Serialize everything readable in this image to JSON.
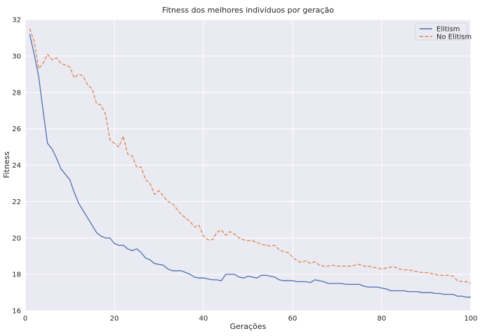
{
  "chart_data": {
    "type": "line",
    "title": "Fitness dos melhores indivíduos por geração",
    "xlabel": "Gerações",
    "ylabel": "Fitness",
    "xlim": [
      0,
      100
    ],
    "ylim": [
      16,
      32
    ],
    "xticks": [
      0,
      20,
      40,
      60,
      80,
      100
    ],
    "yticks": [
      16,
      18,
      20,
      22,
      24,
      26,
      28,
      30,
      32
    ],
    "grid": true,
    "legend_position": "top-right",
    "series": [
      {
        "name": "Elitism",
        "color": "#4c72b0",
        "dash": "solid",
        "x": [
          1,
          2,
          3,
          4,
          5,
          6,
          7,
          8,
          9,
          10,
          11,
          12,
          13,
          14,
          15,
          16,
          17,
          18,
          19,
          20,
          21,
          22,
          23,
          24,
          25,
          26,
          27,
          28,
          29,
          30,
          31,
          32,
          33,
          34,
          35,
          36,
          37,
          38,
          39,
          40,
          41,
          42,
          43,
          44,
          45,
          46,
          47,
          48,
          49,
          50,
          51,
          52,
          53,
          54,
          55,
          56,
          57,
          58,
          59,
          60,
          61,
          62,
          63,
          64,
          65,
          66,
          67,
          68,
          69,
          70,
          71,
          72,
          73,
          74,
          75,
          76,
          77,
          78,
          79,
          80,
          81,
          82,
          83,
          84,
          85,
          86,
          87,
          88,
          89,
          90,
          91,
          92,
          93,
          94,
          95,
          96,
          97,
          98,
          99,
          100
        ],
        "values": [
          31.2,
          30.1,
          28.9,
          27.0,
          25.2,
          24.9,
          24.4,
          23.8,
          23.5,
          23.2,
          22.5,
          21.9,
          21.5,
          21.1,
          20.7,
          20.3,
          20.1,
          20.0,
          20.0,
          19.7,
          19.6,
          19.6,
          19.4,
          19.3,
          19.4,
          19.2,
          18.9,
          18.8,
          18.6,
          18.55,
          18.5,
          18.3,
          18.2,
          18.2,
          18.2,
          18.1,
          18.0,
          17.85,
          17.8,
          17.8,
          17.75,
          17.7,
          17.7,
          17.65,
          18.0,
          18.0,
          18.0,
          17.85,
          17.8,
          17.9,
          17.85,
          17.8,
          17.95,
          17.95,
          17.9,
          17.85,
          17.7,
          17.65,
          17.65,
          17.65,
          17.6,
          17.6,
          17.6,
          17.55,
          17.7,
          17.65,
          17.6,
          17.5,
          17.5,
          17.5,
          17.5,
          17.45,
          17.45,
          17.45,
          17.45,
          17.35,
          17.3,
          17.3,
          17.3,
          17.25,
          17.2,
          17.1,
          17.1,
          17.1,
          17.1,
          17.05,
          17.05,
          17.05,
          17.0,
          17.0,
          17.0,
          16.95,
          16.95,
          16.9,
          16.9,
          16.9,
          16.8,
          16.8,
          16.75,
          16.75
        ]
      },
      {
        "name": "No Elitism",
        "color": "#dd8452",
        "dash": "dashed",
        "x": [
          1,
          2,
          3,
          4,
          5,
          6,
          7,
          8,
          9,
          10,
          11,
          12,
          13,
          14,
          15,
          16,
          17,
          18,
          19,
          20,
          21,
          22,
          23,
          24,
          25,
          26,
          27,
          28,
          29,
          30,
          31,
          32,
          33,
          34,
          35,
          36,
          37,
          38,
          39,
          40,
          41,
          42,
          43,
          44,
          45,
          46,
          47,
          48,
          49,
          50,
          51,
          52,
          53,
          54,
          55,
          56,
          57,
          58,
          59,
          60,
          61,
          62,
          63,
          64,
          65,
          66,
          67,
          68,
          69,
          70,
          71,
          72,
          73,
          74,
          75,
          76,
          77,
          78,
          79,
          80,
          81,
          82,
          83,
          84,
          85,
          86,
          87,
          88,
          89,
          90,
          91,
          92,
          93,
          94,
          95,
          96,
          97,
          98,
          99,
          100
        ],
        "values": [
          31.5,
          30.8,
          29.3,
          29.6,
          30.1,
          29.8,
          29.9,
          29.6,
          29.5,
          29.4,
          28.8,
          29.0,
          28.9,
          28.4,
          28.2,
          27.4,
          27.3,
          26.8,
          25.4,
          25.2,
          25.0,
          25.6,
          24.6,
          24.5,
          23.9,
          23.9,
          23.2,
          23.0,
          22.4,
          22.6,
          22.3,
          22.0,
          21.9,
          21.6,
          21.3,
          21.1,
          20.9,
          20.6,
          20.7,
          20.1,
          19.9,
          19.9,
          20.3,
          20.45,
          20.15,
          20.35,
          20.2,
          20.0,
          19.9,
          19.85,
          19.85,
          19.75,
          19.65,
          19.6,
          19.55,
          19.6,
          19.35,
          19.25,
          19.2,
          18.95,
          18.75,
          18.65,
          18.75,
          18.6,
          18.7,
          18.5,
          18.45,
          18.45,
          18.5,
          18.45,
          18.45,
          18.45,
          18.45,
          18.5,
          18.55,
          18.45,
          18.45,
          18.4,
          18.35,
          18.3,
          18.35,
          18.4,
          18.4,
          18.3,
          18.25,
          18.25,
          18.2,
          18.15,
          18.1,
          18.1,
          18.05,
          18.0,
          17.95,
          17.95,
          17.95,
          17.9,
          17.65,
          17.6,
          17.6,
          17.5
        ]
      }
    ]
  }
}
